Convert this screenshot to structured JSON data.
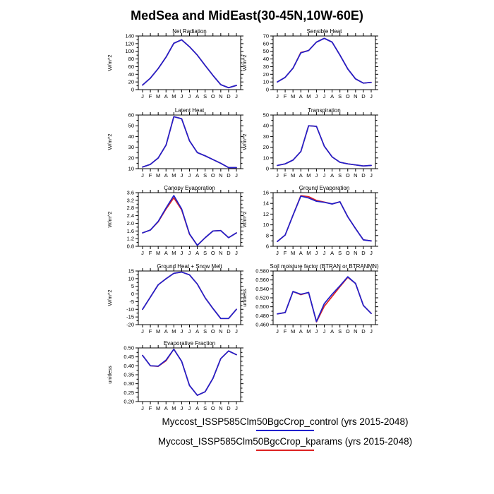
{
  "title": "MedSea and MidEast(30-45N,10W-60E)",
  "months": [
    "J",
    "F",
    "M",
    "A",
    "M",
    "J",
    "J",
    "A",
    "S",
    "O",
    "N",
    "D",
    "J"
  ],
  "colors": {
    "control": "#2020cc",
    "kparams": "#dd2222"
  },
  "legend": {
    "entries": [
      {
        "name": "control",
        "label": "Myccost_ISSP585Clm50BgcCrop_control (yrs 2015-2048)",
        "color": "#2020cc"
      },
      {
        "name": "kparams",
        "label": "Myccost_ISSP585Clm50BgcCrop_kparams (yrs 2015-2048)",
        "color": "#dd2222"
      }
    ]
  },
  "chart_data": [
    {
      "type": "line",
      "title": "Net Radiation",
      "ylabel": "W/m^2",
      "ylim": [
        0,
        140
      ],
      "ytick": 20,
      "ydecimals": 0,
      "categories": [
        "J",
        "F",
        "M",
        "A",
        "M",
        "J",
        "J",
        "A",
        "S",
        "O",
        "N",
        "D",
        "J"
      ],
      "series": [
        {
          "name": "kparams",
          "color": "#dd2222",
          "values": [
            12,
            30,
            55,
            85,
            121,
            130,
            112,
            90,
            63,
            37,
            13,
            5,
            11
          ]
        },
        {
          "name": "control",
          "color": "#2020cc",
          "values": [
            12,
            30,
            55,
            85,
            121,
            130,
            112,
            90,
            63,
            37,
            13,
            5,
            11
          ]
        }
      ]
    },
    {
      "type": "line",
      "title": "Sensible Heat",
      "ylabel": "W/m^2",
      "ylim": [
        0,
        70
      ],
      "ytick": 10,
      "ydecimals": 0,
      "categories": [
        "J",
        "F",
        "M",
        "A",
        "M",
        "J",
        "J",
        "A",
        "S",
        "O",
        "N",
        "D",
        "J"
      ],
      "series": [
        {
          "name": "kparams",
          "color": "#dd2222",
          "values": [
            10,
            16,
            28,
            48.5,
            51,
            62,
            67,
            62,
            45,
            27,
            14,
            8.5,
            9.5
          ]
        },
        {
          "name": "control",
          "color": "#2020cc",
          "values": [
            10,
            16,
            28,
            48,
            51,
            62,
            67,
            62,
            45,
            27,
            14,
            8.5,
            9.5
          ]
        }
      ]
    },
    {
      "type": "line",
      "title": "Latent Heat",
      "ylabel": "W/m^2",
      "ylim": [
        10,
        60
      ],
      "ytick": 10,
      "ydecimals": 0,
      "categories": [
        "J",
        "F",
        "M",
        "A",
        "M",
        "J",
        "J",
        "A",
        "S",
        "O",
        "N",
        "D",
        "J"
      ],
      "series": [
        {
          "name": "kparams",
          "color": "#dd2222",
          "values": [
            11.5,
            14,
            20,
            32,
            58.5,
            56.5,
            36,
            25,
            22,
            18.5,
            15,
            11,
            11
          ]
        },
        {
          "name": "control",
          "color": "#2020cc",
          "values": [
            11.5,
            14,
            20,
            32,
            58.5,
            56.5,
            36,
            25,
            22,
            18.5,
            15,
            11,
            11
          ]
        }
      ]
    },
    {
      "type": "line",
      "title": "Transpiration",
      "ylabel": "W/m^2",
      "ylim": [
        0,
        50
      ],
      "ytick": 10,
      "ydecimals": 0,
      "categories": [
        "J",
        "F",
        "M",
        "A",
        "M",
        "J",
        "J",
        "A",
        "S",
        "O",
        "N",
        "D",
        "J"
      ],
      "series": [
        {
          "name": "kparams",
          "color": "#dd2222",
          "values": [
            3,
            4.5,
            8,
            16,
            40,
            39.5,
            21,
            11,
            6,
            4.5,
            3.5,
            2.5,
            3
          ]
        },
        {
          "name": "control",
          "color": "#2020cc",
          "values": [
            3,
            4.5,
            8,
            16,
            40,
            39.5,
            21,
            11,
            6,
            4.5,
            3.5,
            2.5,
            3
          ]
        }
      ]
    },
    {
      "type": "line",
      "title": "Canopy Evaporation",
      "ylabel": "W/m^2",
      "ylim": [
        0.8,
        3.6
      ],
      "ytick": 0.4,
      "ydecimals": 1,
      "categories": [
        "J",
        "F",
        "M",
        "A",
        "M",
        "J",
        "J",
        "A",
        "S",
        "O",
        "N",
        "D",
        "J"
      ],
      "series": [
        {
          "name": "kparams",
          "color": "#dd2222",
          "values": [
            1.5,
            1.65,
            2.08,
            2.75,
            3.33,
            2.7,
            1.43,
            0.85,
            1.25,
            1.6,
            1.62,
            1.25,
            1.5
          ]
        },
        {
          "name": "control",
          "color": "#2020cc",
          "values": [
            1.5,
            1.65,
            2.1,
            2.8,
            3.45,
            2.75,
            1.45,
            0.85,
            1.25,
            1.6,
            1.62,
            1.25,
            1.5
          ]
        }
      ]
    },
    {
      "type": "line",
      "title": "Ground Evaporation",
      "ylabel": "W/m^2",
      "ylim": [
        6,
        16
      ],
      "ytick": 2,
      "ydecimals": 0,
      "categories": [
        "J",
        "F",
        "M",
        "A",
        "M",
        "J",
        "J",
        "A",
        "S",
        "O",
        "N",
        "D",
        "J"
      ],
      "series": [
        {
          "name": "kparams",
          "color": "#dd2222",
          "values": [
            6.9,
            8.1,
            11.8,
            15.45,
            15.25,
            14.55,
            14.25,
            13.9,
            14.3,
            11.5,
            9.3,
            7.2,
            7.0
          ]
        },
        {
          "name": "control",
          "color": "#2020cc",
          "values": [
            6.9,
            8.1,
            11.8,
            15.35,
            15.0,
            14.4,
            14.2,
            13.9,
            14.3,
            11.5,
            9.3,
            7.2,
            7.0
          ]
        }
      ]
    },
    {
      "type": "line",
      "title": "Ground Heat + Snow Melt",
      "ylabel": "W/m^2",
      "ylim": [
        -20,
        15
      ],
      "ytick": 5,
      "ydecimals": 0,
      "categories": [
        "J",
        "F",
        "M",
        "A",
        "M",
        "J",
        "J",
        "A",
        "S",
        "O",
        "N",
        "D",
        "J"
      ],
      "series": [
        {
          "name": "kparams",
          "color": "#dd2222",
          "values": [
            -10,
            -2,
            6,
            10,
            13.5,
            14.3,
            12.5,
            6.5,
            -2.5,
            -9.5,
            -16,
            -16,
            -10
          ]
        },
        {
          "name": "control",
          "color": "#2020cc",
          "values": [
            -10,
            -2,
            6,
            10,
            13.5,
            14.3,
            12.5,
            6.5,
            -2.5,
            -9.5,
            -16,
            -16,
            -10
          ]
        }
      ]
    },
    {
      "type": "line",
      "title": "Soil moisture factor (BTRAN or BTRANMN)",
      "ylabel": "unitless",
      "ylim": [
        0.46,
        0.58
      ],
      "ytick": 0.02,
      "ydecimals": 3,
      "categories": [
        "J",
        "F",
        "M",
        "A",
        "M",
        "J",
        "J",
        "A",
        "S",
        "O",
        "N",
        "D",
        "J"
      ],
      "series": [
        {
          "name": "kparams",
          "color": "#dd2222",
          "values": [
            0.484,
            0.487,
            0.534,
            0.527,
            0.532,
            0.466,
            0.501,
            0.523,
            0.545,
            0.566,
            0.552,
            0.503,
            0.485
          ]
        },
        {
          "name": "control",
          "color": "#2020cc",
          "values": [
            0.484,
            0.487,
            0.534,
            0.528,
            0.532,
            0.467,
            0.507,
            0.528,
            0.547,
            0.567,
            0.552,
            0.503,
            0.485
          ]
        }
      ]
    },
    {
      "type": "line",
      "title": "Evaporative Fraction",
      "ylabel": "unitless",
      "ylim": [
        0.2,
        0.5
      ],
      "ytick": 0.05,
      "ydecimals": 2,
      "categories": [
        "J",
        "F",
        "M",
        "A",
        "M",
        "J",
        "J",
        "A",
        "S",
        "O",
        "N",
        "D",
        "J"
      ],
      "series": [
        {
          "name": "kparams",
          "color": "#dd2222",
          "values": [
            0.458,
            0.4,
            0.397,
            0.428,
            0.493,
            0.425,
            0.29,
            0.235,
            0.255,
            0.33,
            0.44,
            0.483,
            0.462
          ]
        },
        {
          "name": "control",
          "color": "#2020cc",
          "values": [
            0.458,
            0.4,
            0.398,
            0.432,
            0.493,
            0.425,
            0.29,
            0.235,
            0.255,
            0.33,
            0.44,
            0.483,
            0.462
          ]
        }
      ]
    }
  ]
}
